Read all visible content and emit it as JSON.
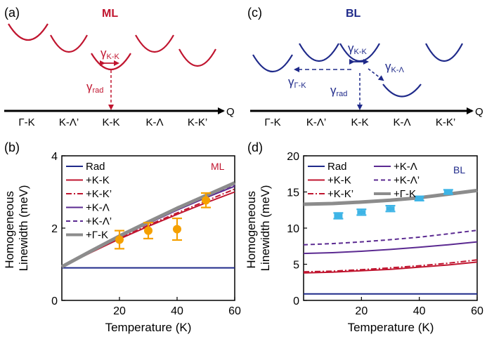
{
  "colors": {
    "red": "#c0152f",
    "blue": "#1f2a8a",
    "purple": "#5b2a91",
    "gray": "#8c8c8c",
    "orange": "#f5a000",
    "cyan": "#3db4e6",
    "black": "#000000"
  },
  "panel_a": {
    "label": "(a)",
    "title": "ML",
    "gamma_kk": "γ",
    "gamma_kk_sub": "K-K",
    "gamma_rad": "γ",
    "gamma_rad_sub": "rad",
    "axis_q": "Q",
    "ticks": [
      "Γ-K",
      "K-Λ’",
      "K-K",
      "K-Λ",
      "K-K’"
    ]
  },
  "panel_c": {
    "label": "(c)",
    "title": "BL",
    "gamma_kk": "γ",
    "gamma_kk_sub": "K-K",
    "gamma_kl": "γ",
    "gamma_kl_sub": "K-Λ",
    "gamma_gk": "γ",
    "gamma_gk_sub": "Γ-K",
    "gamma_rad": "γ",
    "gamma_rad_sub": "rad",
    "axis_q": "Q",
    "ticks": [
      "Γ-K",
      "K-Λ’",
      "K-K",
      "K-Λ",
      "K-K’"
    ]
  },
  "chart_data": [
    {
      "panel": "(b)",
      "type": "line",
      "annotation": "ML",
      "xlabel": "Temperature (K)",
      "ylabel": "Homogeneous Linewidth (meV)",
      "xlim": [
        0,
        60
      ],
      "ylim": [
        0,
        4
      ],
      "xticks": [
        20,
        40,
        60
      ],
      "yticks": [
        0,
        2,
        4
      ],
      "legend_position": "top-left",
      "x": [
        0,
        10,
        20,
        30,
        40,
        50,
        60
      ],
      "series": [
        {
          "name": "Rad",
          "style": "solid",
          "color": "blue",
          "values": [
            0.9,
            0.9,
            0.9,
            0.9,
            0.9,
            0.9,
            0.9
          ]
        },
        {
          "name": "+K-K",
          "style": "solid",
          "color": "red",
          "values": [
            0.93,
            1.32,
            1.7,
            2.05,
            2.38,
            2.7,
            3.0
          ]
        },
        {
          "name": "+K-K’",
          "style": "dashdot",
          "color": "red",
          "values": [
            0.93,
            1.33,
            1.72,
            2.08,
            2.42,
            2.75,
            3.08
          ]
        },
        {
          "name": "+K-Λ",
          "style": "solid",
          "color": "purple",
          "values": [
            0.93,
            1.35,
            1.76,
            2.13,
            2.5,
            2.84,
            3.16
          ]
        },
        {
          "name": "+K-Λ’",
          "style": "dash",
          "color": "purple",
          "values": [
            0.93,
            1.35,
            1.77,
            2.15,
            2.52,
            2.87,
            3.2
          ]
        },
        {
          "name": "+Γ-K",
          "style": "thick",
          "color": "gray",
          "values": [
            0.93,
            1.36,
            1.78,
            2.17,
            2.55,
            2.9,
            3.25
          ]
        }
      ],
      "measured": [
        {
          "x": 20,
          "y": 1.68,
          "err": 0.25
        },
        {
          "x": 30,
          "y": 1.93,
          "err": 0.22
        },
        {
          "x": 40,
          "y": 1.97,
          "err": 0.3
        },
        {
          "x": 50,
          "y": 2.77,
          "err": 0.2
        }
      ]
    },
    {
      "panel": "(d)",
      "type": "line",
      "annotation": "BL",
      "xlabel": "Temperature (K)",
      "ylabel": "Homogeneous Linewidth (meV)",
      "xlim": [
        0,
        60
      ],
      "ylim": [
        0,
        20
      ],
      "xticks": [
        20,
        40,
        60
      ],
      "yticks": [
        0,
        5,
        10,
        15,
        20
      ],
      "legend_position": "top",
      "x": [
        0,
        10,
        20,
        30,
        40,
        50,
        60
      ],
      "series": [
        {
          "name": "Rad",
          "style": "solid",
          "color": "blue",
          "values": [
            0.9,
            0.9,
            0.9,
            0.9,
            0.9,
            0.9,
            0.9
          ]
        },
        {
          "name": "+K-K",
          "style": "solid",
          "color": "red",
          "values": [
            3.8,
            3.9,
            4.1,
            4.3,
            4.6,
            4.9,
            5.3
          ]
        },
        {
          "name": "+K-K’",
          "style": "dashdot",
          "color": "red",
          "values": [
            3.95,
            4.05,
            4.25,
            4.5,
            4.8,
            5.15,
            5.6
          ]
        },
        {
          "name": "+K-Λ",
          "style": "solid",
          "color": "purple",
          "values": [
            6.5,
            6.6,
            6.8,
            7.05,
            7.35,
            7.7,
            8.1
          ]
        },
        {
          "name": "+K-Λ’",
          "style": "dash",
          "color": "purple",
          "values": [
            7.7,
            7.85,
            8.1,
            8.4,
            8.75,
            9.2,
            9.7
          ]
        },
        {
          "name": "+Γ-K",
          "style": "thick",
          "color": "gray",
          "values": [
            13.3,
            13.4,
            13.6,
            13.85,
            14.2,
            14.7,
            15.2
          ]
        }
      ],
      "measured": [
        {
          "x": 12,
          "y": 11.7,
          "err": 0.4
        },
        {
          "x": 20,
          "y": 12.2,
          "err": 0.4
        },
        {
          "x": 30,
          "y": 12.7,
          "err": 0.4
        },
        {
          "x": 40,
          "y": 14.1,
          "err": 0.3
        },
        {
          "x": 50,
          "y": 15.0,
          "err": 0.3
        }
      ]
    }
  ]
}
